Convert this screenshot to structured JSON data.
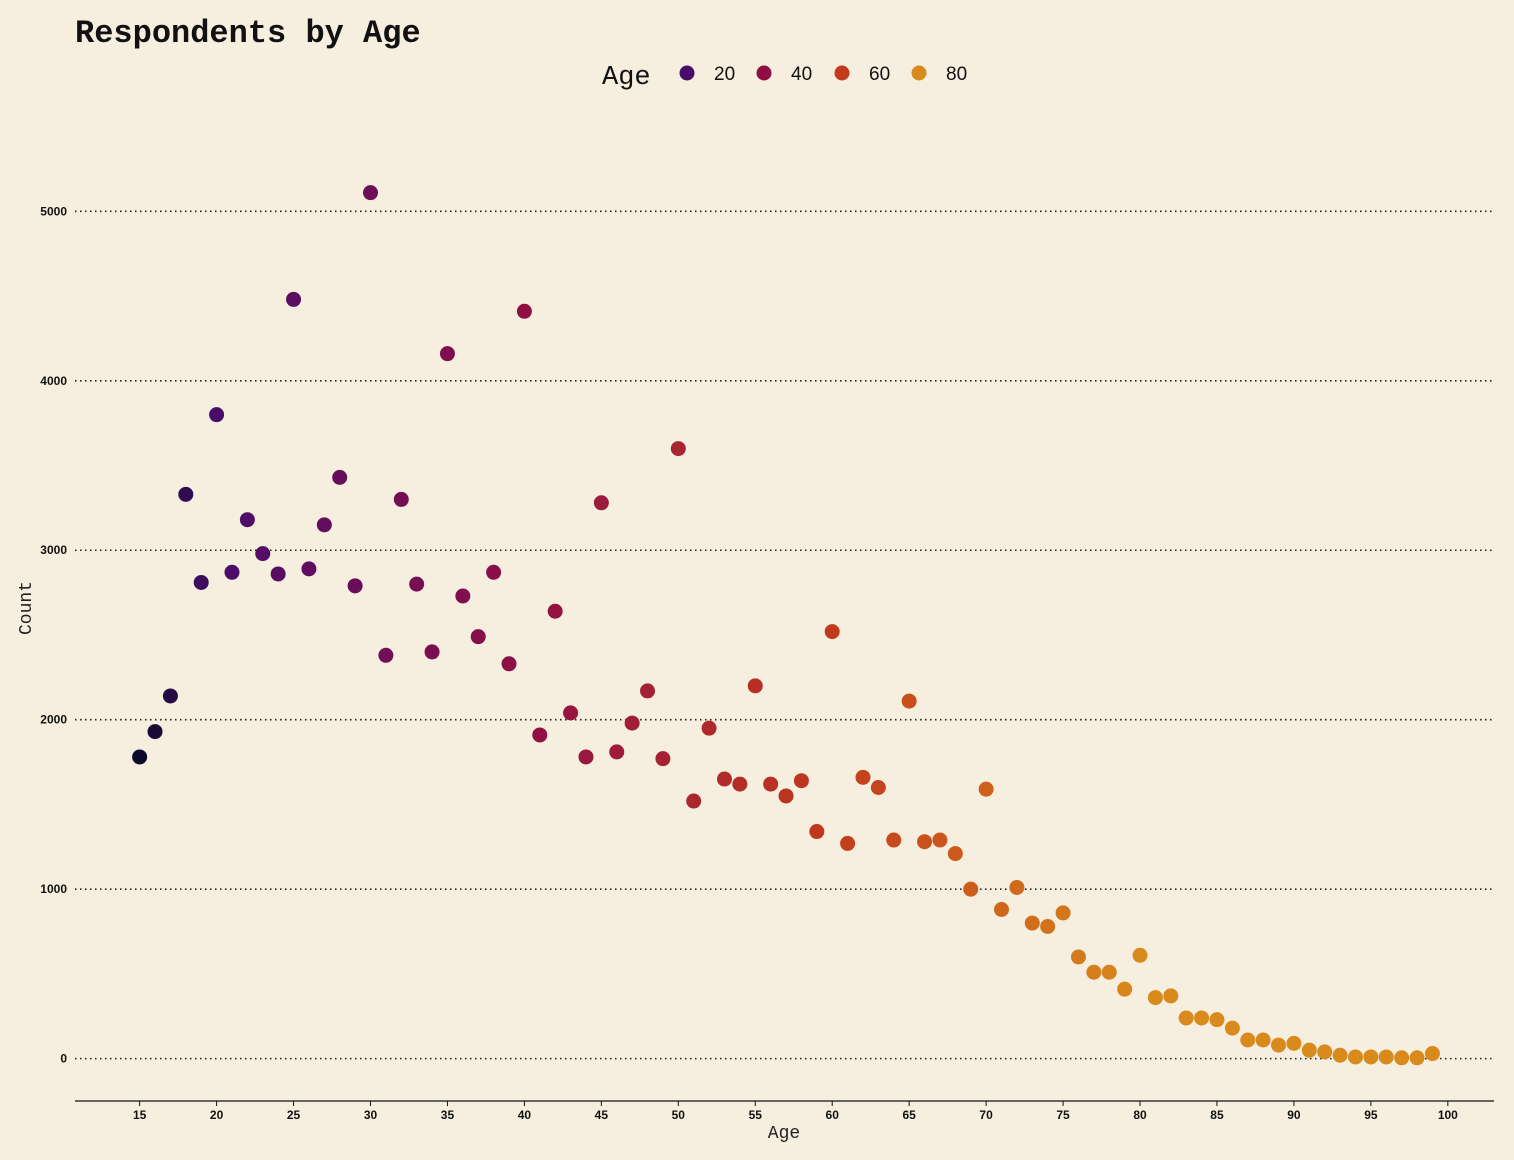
{
  "chart_data": {
    "type": "scatter",
    "title": "Respondents by Age",
    "xlabel": "Age",
    "ylabel": "Count",
    "xlim": [
      10.8,
      103
    ],
    "ylim": [
      -250,
      5350
    ],
    "x_ticks": [
      15,
      20,
      25,
      30,
      35,
      40,
      45,
      50,
      55,
      60,
      65,
      70,
      75,
      80,
      85,
      90,
      95,
      100
    ],
    "y_ticks": [
      0,
      1000,
      2000,
      3000,
      4000,
      5000
    ],
    "grid": "horizontal dotted",
    "legend": {
      "title": "Age",
      "placement": "top-center",
      "entries": [
        {
          "label": "20",
          "color": "#4a0c6b"
        },
        {
          "label": "40",
          "color": "#8f0f45"
        },
        {
          "label": "60",
          "color": "#c23a1c"
        },
        {
          "label": "80",
          "color": "#d98a1c"
        }
      ]
    },
    "color_scale": {
      "variable": "Age",
      "stops": [
        {
          "value": 15,
          "color": "#0b0a2a"
        },
        {
          "value": 20,
          "color": "#4a0c6b"
        },
        {
          "value": 40,
          "color": "#8f0f45"
        },
        {
          "value": 60,
          "color": "#c23a1c"
        },
        {
          "value": 80,
          "color": "#d98a1c"
        },
        {
          "value": 99,
          "color": "#d98a1c"
        }
      ]
    },
    "points": [
      [
        15,
        1780
      ],
      [
        16,
        1930
      ],
      [
        17,
        2140
      ],
      [
        18,
        3330
      ],
      [
        19,
        2810
      ],
      [
        20,
        3800
      ],
      [
        21,
        2870
      ],
      [
        22,
        3180
      ],
      [
        23,
        2980
      ],
      [
        24,
        2860
      ],
      [
        25,
        4480
      ],
      [
        26,
        2890
      ],
      [
        27,
        3150
      ],
      [
        28,
        3430
      ],
      [
        29,
        2790
      ],
      [
        30,
        5110
      ],
      [
        31,
        2380
      ],
      [
        32,
        3300
      ],
      [
        33,
        2800
      ],
      [
        34,
        2400
      ],
      [
        35,
        4160
      ],
      [
        36,
        2730
      ],
      [
        37,
        2490
      ],
      [
        38,
        2870
      ],
      [
        39,
        2330
      ],
      [
        40,
        4410
      ],
      [
        41,
        1910
      ],
      [
        42,
        2640
      ],
      [
        43,
        2040
      ],
      [
        44,
        1780
      ],
      [
        45,
        3280
      ],
      [
        46,
        1810
      ],
      [
        47,
        1980
      ],
      [
        48,
        2170
      ],
      [
        49,
        1770
      ],
      [
        50,
        3600
      ],
      [
        51,
        1520
      ],
      [
        52,
        1950
      ],
      [
        53,
        1650
      ],
      [
        54,
        1620
      ],
      [
        55,
        2200
      ],
      [
        56,
        1620
      ],
      [
        57,
        1550
      ],
      [
        58,
        1640
      ],
      [
        59,
        1340
      ],
      [
        60,
        2520
      ],
      [
        61,
        1270
      ],
      [
        62,
        1660
      ],
      [
        63,
        1600
      ],
      [
        64,
        1290
      ],
      [
        65,
        2110
      ],
      [
        66,
        1280
      ],
      [
        67,
        1290
      ],
      [
        68,
        1210
      ],
      [
        69,
        1000
      ],
      [
        70,
        1590
      ],
      [
        71,
        880
      ],
      [
        72,
        1010
      ],
      [
        73,
        800
      ],
      [
        74,
        780
      ],
      [
        75,
        860
      ],
      [
        76,
        600
      ],
      [
        77,
        510
      ],
      [
        78,
        510
      ],
      [
        79,
        410
      ],
      [
        80,
        610
      ],
      [
        81,
        360
      ],
      [
        82,
        370
      ],
      [
        83,
        240
      ],
      [
        84,
        240
      ],
      [
        85,
        230
      ],
      [
        86,
        180
      ],
      [
        87,
        110
      ],
      [
        88,
        110
      ],
      [
        89,
        80
      ],
      [
        90,
        90
      ],
      [
        91,
        50
      ],
      [
        92,
        40
      ],
      [
        93,
        20
      ],
      [
        94,
        10
      ],
      [
        95,
        10
      ],
      [
        96,
        10
      ],
      [
        97,
        5
      ],
      [
        98,
        5
      ],
      [
        99,
        30
      ]
    ]
  }
}
